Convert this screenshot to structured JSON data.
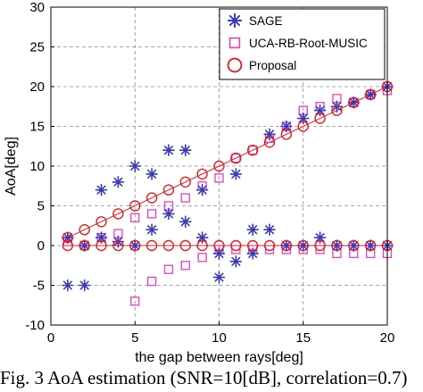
{
  "chart_data": {
    "type": "scatter",
    "xlabel": "the gap between rays[deg]",
    "ylabel": "AoA[deg]",
    "xlim": [
      0,
      20
    ],
    "ylim": [
      -10,
      30
    ],
    "xticks": [
      0,
      5,
      10,
      15,
      20
    ],
    "yticks": [
      -10,
      -5,
      0,
      5,
      10,
      15,
      20,
      25,
      30
    ],
    "grid": true,
    "legend_position": "top-right",
    "series": [
      {
        "name": "SAGE",
        "marker": "asterisk",
        "color": "#3a3ab4",
        "points": [
          [
            1,
            1
          ],
          [
            1,
            -5
          ],
          [
            2,
            0
          ],
          [
            2,
            -5
          ],
          [
            3,
            7
          ],
          [
            3,
            1
          ],
          [
            4,
            8
          ],
          [
            4,
            0.5
          ],
          [
            5,
            10
          ],
          [
            5,
            0
          ],
          [
            6,
            9
          ],
          [
            6,
            2
          ],
          [
            7,
            12
          ],
          [
            7,
            4
          ],
          [
            8,
            12
          ],
          [
            8,
            3
          ],
          [
            9,
            7
          ],
          [
            9,
            1
          ],
          [
            10,
            -1
          ],
          [
            10,
            -4
          ],
          [
            11,
            9
          ],
          [
            11,
            -2
          ],
          [
            12,
            2
          ],
          [
            12,
            -1
          ],
          [
            13,
            14
          ],
          [
            13,
            2
          ],
          [
            14,
            15
          ],
          [
            14,
            0
          ],
          [
            15,
            16
          ],
          [
            15,
            0
          ],
          [
            16,
            17
          ],
          [
            16,
            1
          ],
          [
            17,
            17.5
          ],
          [
            17,
            0
          ],
          [
            18,
            18
          ],
          [
            18,
            0
          ],
          [
            19,
            19
          ],
          [
            19,
            0
          ],
          [
            20,
            20
          ],
          [
            20,
            0
          ]
        ]
      },
      {
        "name": "UCA-RB-Root-MUSIC",
        "marker": "square",
        "color": "#e040c0",
        "points": [
          [
            1,
            0.5
          ],
          [
            2,
            0
          ],
          [
            3,
            1
          ],
          [
            4,
            1.5
          ],
          [
            5,
            3.5
          ],
          [
            5,
            -7
          ],
          [
            6,
            4
          ],
          [
            6,
            -4.5
          ],
          [
            7,
            5
          ],
          [
            7,
            -3
          ],
          [
            8,
            6
          ],
          [
            8,
            -2.5
          ],
          [
            9,
            7.5
          ],
          [
            9,
            -1.5
          ],
          [
            10,
            8.5
          ],
          [
            10,
            -0.5
          ],
          [
            11,
            11
          ],
          [
            11,
            -0.5
          ],
          [
            12,
            12
          ],
          [
            12,
            -0.5
          ],
          [
            13,
            13.5
          ],
          [
            13,
            -0.5
          ],
          [
            14,
            15
          ],
          [
            14,
            -0.5
          ],
          [
            15,
            17
          ],
          [
            15,
            -0.5
          ],
          [
            16,
            17.5
          ],
          [
            16,
            -0.5
          ],
          [
            17,
            18.5
          ],
          [
            17,
            -1
          ],
          [
            18,
            18
          ],
          [
            18,
            -1
          ],
          [
            19,
            19
          ],
          [
            19,
            -1
          ],
          [
            20,
            19.5
          ],
          [
            20,
            -1
          ]
        ]
      },
      {
        "name": "Proposal",
        "marker": "circle",
        "color": "#e02020",
        "points": [
          [
            1,
            1
          ],
          [
            1,
            0
          ],
          [
            2,
            2
          ],
          [
            2,
            0
          ],
          [
            3,
            3
          ],
          [
            3,
            0
          ],
          [
            4,
            4
          ],
          [
            4,
            0
          ],
          [
            5,
            5
          ],
          [
            5,
            0
          ],
          [
            6,
            6
          ],
          [
            6,
            0
          ],
          [
            7,
            7
          ],
          [
            7,
            0
          ],
          [
            8,
            8
          ],
          [
            8,
            0
          ],
          [
            9,
            9
          ],
          [
            9,
            0
          ],
          [
            10,
            10
          ],
          [
            10,
            0
          ],
          [
            11,
            11
          ],
          [
            11,
            0
          ],
          [
            12,
            12
          ],
          [
            12,
            0
          ],
          [
            13,
            13
          ],
          [
            13,
            0
          ],
          [
            14,
            14
          ],
          [
            14,
            0
          ],
          [
            15,
            15
          ],
          [
            15,
            0
          ],
          [
            16,
            16
          ],
          [
            16,
            0
          ],
          [
            17,
            17
          ],
          [
            17,
            0
          ],
          [
            18,
            18
          ],
          [
            18,
            0
          ],
          [
            19,
            19
          ],
          [
            19,
            0
          ],
          [
            20,
            20
          ],
          [
            20,
            0
          ]
        ]
      }
    ],
    "reference_lines": [
      {
        "points": [
          [
            1,
            1
          ],
          [
            20,
            20
          ]
        ],
        "color": "#b03030"
      },
      {
        "points": [
          [
            1,
            0
          ],
          [
            20,
            0
          ]
        ],
        "color": "#b03030"
      }
    ]
  },
  "caption": "Fig. 3 AoA estimation (SNR=10[dB], correlation=0.7)"
}
